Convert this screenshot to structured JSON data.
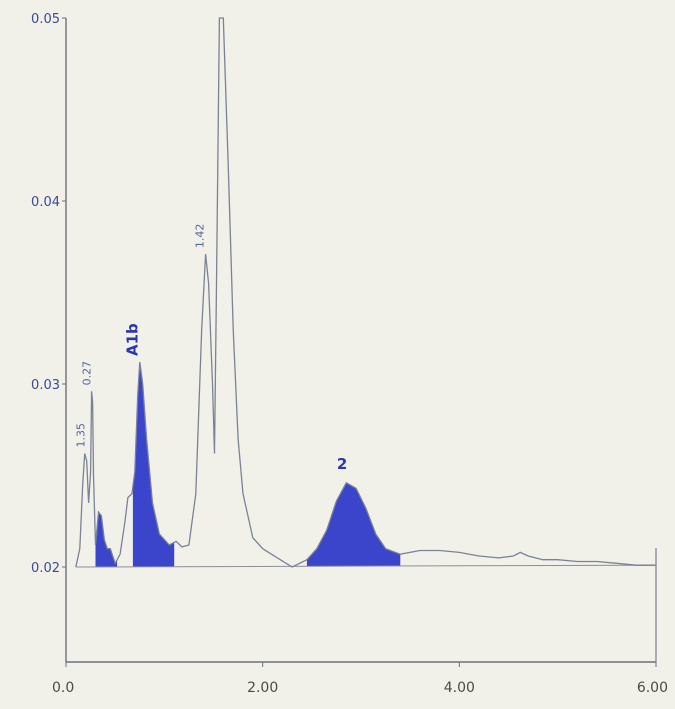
{
  "chart_data": {
    "type": "line",
    "title": "",
    "xlabel": "",
    "ylabel": "",
    "xlim": [
      0,
      6
    ],
    "ylim": [
      0.0,
      0.05
    ],
    "x_ticks": [
      "0.0",
      "2.00",
      "4.00",
      "6.00"
    ],
    "x_tick_values": [
      0,
      2,
      4,
      6
    ],
    "y_ticks": [
      "0.02",
      "0.03",
      "0.04",
      "0.05"
    ],
    "y_tick_values": [
      0.02,
      0.03,
      0.04,
      0.05
    ],
    "line_color": "#7b8296",
    "fill_color": "#2a36c8",
    "series": [
      {
        "values": [
          [
            0.1,
            0.02
          ],
          [
            0.14,
            0.021
          ],
          [
            0.17,
            0.0245
          ],
          [
            0.19,
            0.0262
          ],
          [
            0.21,
            0.0258
          ],
          [
            0.23,
            0.0235
          ],
          [
            0.25,
            0.0252
          ],
          [
            0.26,
            0.0296
          ],
          [
            0.27,
            0.029
          ],
          [
            0.28,
            0.025
          ],
          [
            0.3,
            0.0212
          ],
          [
            0.33,
            0.023
          ],
          [
            0.36,
            0.0228
          ],
          [
            0.39,
            0.0215
          ],
          [
            0.42,
            0.021
          ],
          [
            0.45,
            0.021
          ],
          [
            0.5,
            0.0202
          ],
          [
            0.55,
            0.0207
          ],
          [
            0.6,
            0.0225
          ],
          [
            0.63,
            0.0238
          ],
          [
            0.67,
            0.024
          ],
          [
            0.7,
            0.0252
          ],
          [
            0.73,
            0.0295
          ],
          [
            0.75,
            0.0312
          ],
          [
            0.78,
            0.03
          ],
          [
            0.82,
            0.027
          ],
          [
            0.88,
            0.0235
          ],
          [
            0.95,
            0.0218
          ],
          [
            1.05,
            0.0212
          ],
          [
            1.12,
            0.0214
          ],
          [
            1.18,
            0.0211
          ],
          [
            1.25,
            0.0212
          ],
          [
            1.32,
            0.024
          ],
          [
            1.38,
            0.033
          ],
          [
            1.42,
            0.0371
          ],
          [
            1.45,
            0.0355
          ],
          [
            1.49,
            0.03
          ],
          [
            1.51,
            0.0262
          ],
          [
            1.53,
            0.035
          ],
          [
            1.56,
            0.05
          ],
          [
            1.6,
            0.05
          ],
          [
            1.65,
            0.042
          ],
          [
            1.7,
            0.033
          ],
          [
            1.75,
            0.027
          ],
          [
            1.8,
            0.024
          ],
          [
            1.9,
            0.0216
          ],
          [
            2.0,
            0.021
          ],
          [
            2.15,
            0.0205
          ],
          [
            2.3,
            0.02
          ],
          [
            2.45,
            0.0204
          ],
          [
            2.55,
            0.021
          ],
          [
            2.65,
            0.022
          ],
          [
            2.75,
            0.0236
          ],
          [
            2.85,
            0.0246
          ],
          [
            2.95,
            0.0243
          ],
          [
            3.05,
            0.0232
          ],
          [
            3.15,
            0.0218
          ],
          [
            3.25,
            0.021
          ],
          [
            3.4,
            0.0207
          ],
          [
            3.6,
            0.0209
          ],
          [
            3.8,
            0.0209
          ],
          [
            4.0,
            0.0208
          ],
          [
            4.2,
            0.0206
          ],
          [
            4.4,
            0.0205
          ],
          [
            4.55,
            0.0206
          ],
          [
            4.62,
            0.0208
          ],
          [
            4.7,
            0.0206
          ],
          [
            4.85,
            0.0204
          ],
          [
            5.0,
            0.0204
          ],
          [
            5.2,
            0.0203
          ],
          [
            5.4,
            0.0203
          ],
          [
            5.6,
            0.0202
          ],
          [
            5.8,
            0.0201
          ],
          [
            6.0,
            0.0201
          ]
        ]
      }
    ],
    "baseline": [
      [
        0.1,
        0.02
      ],
      [
        6.0,
        0.0201
      ]
    ],
    "filled_peaks": [
      {
        "from": 0.3,
        "to": 0.52
      },
      {
        "from": 0.68,
        "to": 1.1
      },
      {
        "from": 2.45,
        "to": 3.4
      }
    ],
    "peak_labels": [
      {
        "text": "1.35",
        "x": 0.21,
        "y": 0.0262,
        "size": "small"
      },
      {
        "text": "0.27",
        "x": 0.27,
        "y": 0.0296,
        "size": "small"
      },
      {
        "text": "A1b",
        "x": 0.75,
        "y": 0.0312,
        "size": "large"
      },
      {
        "text": "1.42",
        "x": 1.42,
        "y": 0.0371,
        "size": "small"
      },
      {
        "text": "2",
        "x": 2.95,
        "y": 0.0246,
        "size": "large"
      }
    ]
  }
}
